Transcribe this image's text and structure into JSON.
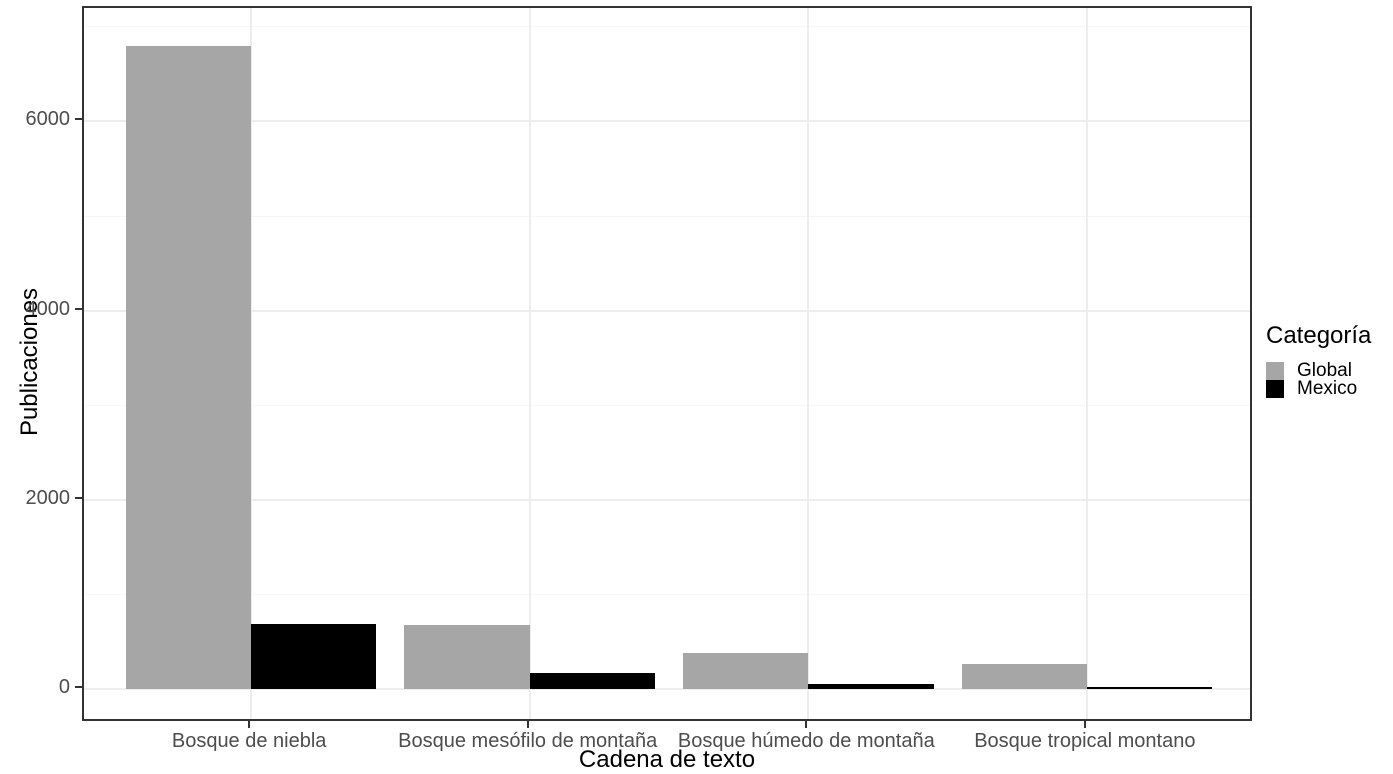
{
  "chart_data": {
    "type": "bar",
    "grouping": "dodged",
    "title": "",
    "xlabel": "Cadena de texto",
    "ylabel": "Publicaciones",
    "legend_title": "Categoría",
    "legend_position": "right",
    "categories": [
      "Bosque de niebla",
      "Bosque mesófilo de montaña",
      "Bosque húmedo de montaña",
      "Bosque tropical montano"
    ],
    "series": [
      {
        "name": "Global",
        "color": "#a6a6a6",
        "values": [
          6800,
          680,
          380,
          260
        ]
      },
      {
        "name": "Mexico",
        "color": "#000000",
        "values": [
          690,
          170,
          50,
          20
        ]
      }
    ],
    "y_ticks": [
      0,
      2000,
      4000,
      6000
    ],
    "y_minor_ticks": [
      1000,
      3000,
      5000,
      7000
    ],
    "ylim": [
      -360,
      7200
    ],
    "grid": true,
    "styles": {
      "background": "#ffffff",
      "panel_background": "#ffffff",
      "panel_border": "#333333",
      "grid_major": "#ededed",
      "grid_minor": "#f6f6f6",
      "tick_color": "#333333",
      "axis_text_color": "#4d4d4d",
      "axis_title_color": "#000000"
    }
  }
}
